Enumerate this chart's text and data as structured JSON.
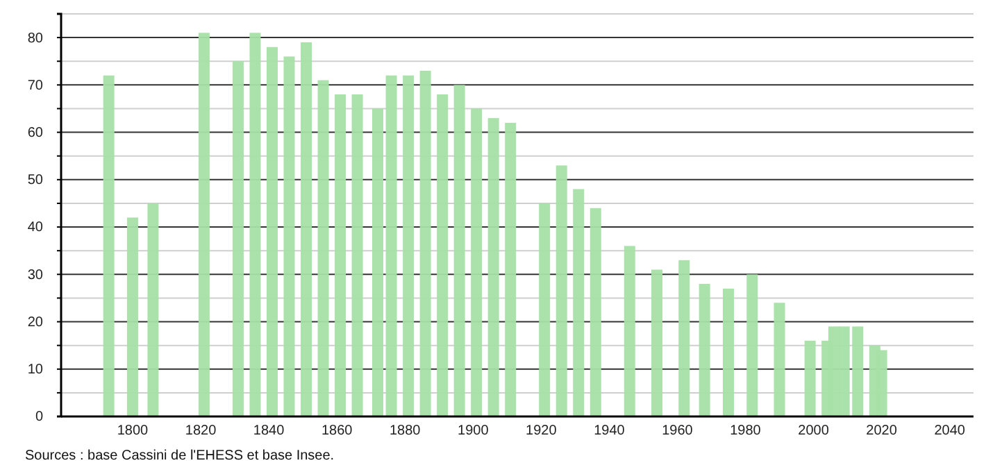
{
  "chart_data": {
    "type": "bar",
    "x": [
      1793,
      1800,
      1806,
      1821,
      1831,
      1836,
      1841,
      1846,
      1851,
      1856,
      1861,
      1866,
      1872,
      1876,
      1881,
      1886,
      1891,
      1896,
      1901,
      1906,
      1911,
      1921,
      1926,
      1931,
      1936,
      1946,
      1954,
      1962,
      1968,
      1975,
      1982,
      1990,
      1999,
      2004,
      2006,
      2009,
      2013,
      2018,
      2020
    ],
    "values": [
      72,
      42,
      45,
      81,
      75,
      81,
      78,
      76,
      79,
      71,
      68,
      68,
      65,
      72,
      72,
      73,
      68,
      70,
      65,
      63,
      62,
      45,
      53,
      48,
      44,
      36,
      31,
      33,
      28,
      27,
      30,
      24,
      16,
      16,
      19,
      19,
      19,
      15,
      14
    ],
    "color": "#a6e0a6",
    "xlim": [
      1779,
      2047
    ],
    "xticks": [
      1800,
      1820,
      1840,
      1860,
      1880,
      1900,
      1920,
      1940,
      1960,
      1980,
      2000,
      2020,
      2040
    ],
    "ylim": [
      0,
      85
    ],
    "yticks": [
      0,
      {
        "value": 5,
        "label": null
      },
      10,
      {
        "value": 15,
        "label": null
      },
      20,
      {
        "value": 25,
        "label": null
      },
      30,
      {
        "value": 35,
        "label": null
      },
      40,
      {
        "value": 45,
        "label": null
      },
      50,
      {
        "value": 55,
        "label": null
      },
      60,
      {
        "value": 65,
        "label": null
      },
      70,
      {
        "value": 75,
        "label": null
      },
      80,
      {
        "value": 85,
        "label": null
      }
    ],
    "grid": true,
    "annotations": [
      "Sources : base Cassini de l'EHESS et base Insee."
    ]
  }
}
